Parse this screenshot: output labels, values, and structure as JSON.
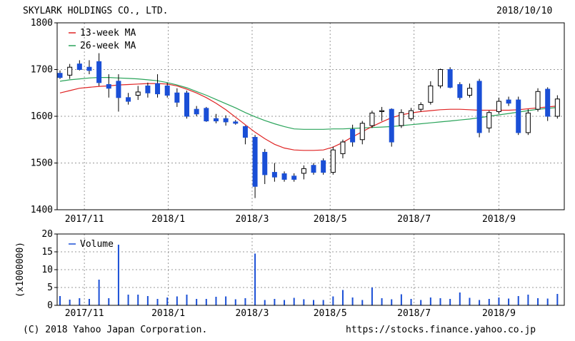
{
  "header": {
    "company": "SKYLARK HOLDINGS CO., LTD.",
    "date": "2018/10/10"
  },
  "footer": {
    "copyright": "(C) 2018 Yahoo Japan Corporation.",
    "url": "https://stocks.finance.yahoo.co.jp"
  },
  "colors": {
    "up": "#ffffff",
    "down": "#1a4fd6",
    "ma13": "#e02424",
    "ma26": "#2aa45a",
    "volume": "#1a4fd6",
    "grid": "#999999"
  },
  "chart_data": [
    {
      "type": "candlestick",
      "title": "SKYLARK HOLDINGS CO., LTD.",
      "ylim": [
        1400,
        1800
      ],
      "yticks": [
        1400,
        1500,
        1600,
        1700,
        1800
      ],
      "xticks": [
        "2017/11",
        "2018/1",
        "2018/3",
        "2018/5",
        "2018/7",
        "2018/9"
      ],
      "xtick_pos": [
        2.5,
        11.1,
        19.7,
        27.7,
        36.3,
        45.0
      ],
      "grid": true,
      "legend": [
        "13-week MA",
        "26-week MA"
      ],
      "legend_position": "top-left",
      "n": 52,
      "candles": [
        [
          1692,
          1698,
          1680,
          1683
        ],
        [
          1688,
          1712,
          1680,
          1705
        ],
        [
          1712,
          1720,
          1698,
          1700
        ],
        [
          1705,
          1720,
          1690,
          1698
        ],
        [
          1717,
          1735,
          1665,
          1672
        ],
        [
          1668,
          1690,
          1640,
          1660
        ],
        [
          1675,
          1690,
          1610,
          1640
        ],
        [
          1640,
          1650,
          1625,
          1632
        ],
        [
          1645,
          1665,
          1635,
          1652
        ],
        [
          1665,
          1672,
          1640,
          1650
        ],
        [
          1670,
          1690,
          1640,
          1648
        ],
        [
          1665,
          1672,
          1640,
          1645
        ],
        [
          1650,
          1660,
          1620,
          1630
        ],
        [
          1650,
          1655,
          1595,
          1600
        ],
        [
          1615,
          1622,
          1600,
          1605
        ],
        [
          1617,
          1620,
          1588,
          1590
        ],
        [
          1595,
          1605,
          1585,
          1590
        ],
        [
          1595,
          1602,
          1580,
          1588
        ],
        [
          1588,
          1592,
          1582,
          1585
        ],
        [
          1578,
          1580,
          1540,
          1555
        ],
        [
          1555,
          1560,
          1425,
          1450
        ],
        [
          1523,
          1530,
          1455,
          1475
        ],
        [
          1480,
          1500,
          1460,
          1470
        ],
        [
          1477,
          1482,
          1460,
          1465
        ],
        [
          1472,
          1478,
          1460,
          1465
        ],
        [
          1478,
          1495,
          1465,
          1488
        ],
        [
          1495,
          1500,
          1475,
          1480
        ],
        [
          1505,
          1510,
          1475,
          1480
        ],
        [
          1480,
          1535,
          1475,
          1528
        ],
        [
          1520,
          1550,
          1510,
          1545
        ],
        [
          1572,
          1582,
          1535,
          1545
        ],
        [
          1550,
          1590,
          1540,
          1585
        ],
        [
          1580,
          1612,
          1575,
          1607
        ],
        [
          1610,
          1620,
          1590,
          1612
        ],
        [
          1615,
          1617,
          1535,
          1545
        ],
        [
          1580,
          1615,
          1575,
          1608
        ],
        [
          1595,
          1618,
          1590,
          1612
        ],
        [
          1615,
          1630,
          1610,
          1625
        ],
        [
          1630,
          1675,
          1625,
          1665
        ],
        [
          1665,
          1702,
          1660,
          1700
        ],
        [
          1700,
          1705,
          1660,
          1662
        ],
        [
          1668,
          1673,
          1635,
          1640
        ],
        [
          1645,
          1670,
          1640,
          1660
        ],
        [
          1675,
          1680,
          1555,
          1565
        ],
        [
          1575,
          1612,
          1565,
          1608
        ],
        [
          1610,
          1640,
          1605,
          1632
        ],
        [
          1635,
          1642,
          1622,
          1628
        ],
        [
          1635,
          1642,
          1560,
          1565
        ],
        [
          1565,
          1615,
          1560,
          1607
        ],
        [
          1615,
          1660,
          1610,
          1653
        ],
        [
          1658,
          1662,
          1590,
          1600
        ],
        [
          1600,
          1645,
          1595,
          1637
        ]
      ],
      "ma13": [
        1650,
        1655,
        1660,
        1662,
        1664,
        1665,
        1667,
        1668,
        1669,
        1670,
        1670,
        1669,
        1665,
        1658,
        1650,
        1640,
        1628,
        1614,
        1598,
        1582,
        1566,
        1552,
        1540,
        1532,
        1528,
        1527,
        1527,
        1528,
        1534,
        1544,
        1556,
        1567,
        1578,
        1588,
        1597,
        1603,
        1607,
        1610,
        1612,
        1614,
        1615,
        1615,
        1614,
        1613,
        1613,
        1613,
        1613,
        1614,
        1616,
        1618,
        1620,
        1622
      ],
      "ma26": [
        1675,
        1678,
        1680,
        1682,
        1683,
        1683,
        1682,
        1681,
        1680,
        1678,
        1676,
        1672,
        1667,
        1661,
        1653,
        1645,
        1636,
        1627,
        1618,
        1608,
        1599,
        1591,
        1584,
        1578,
        1573,
        1572,
        1572,
        1572,
        1573,
        1573,
        1574,
        1575,
        1576,
        1577,
        1578,
        1580,
        1582,
        1584,
        1586,
        1588,
        1590,
        1592,
        1594,
        1597,
        1600,
        1603,
        1606,
        1609,
        1612,
        1615,
        1617,
        1619
      ]
    },
    {
      "type": "bar",
      "legend": [
        "Volume"
      ],
      "ylabel": "(x1000000)",
      "ylim": [
        0,
        20
      ],
      "yticks": [
        0,
        5,
        10,
        15,
        20
      ],
      "xticks": [
        "2017/11",
        "2018/1",
        "2018/3",
        "2018/5",
        "2018/7",
        "2018/9"
      ],
      "values": [
        2.6,
        1.6,
        2.0,
        1.8,
        7.2,
        2.0,
        17.0,
        3.0,
        3.0,
        2.6,
        1.8,
        2.2,
        2.5,
        3.0,
        1.8,
        1.8,
        2.4,
        2.5,
        1.7,
        2.0,
        14.5,
        1.5,
        1.8,
        1.5,
        2.1,
        1.7,
        1.5,
        1.5,
        2.5,
        4.3,
        2.2,
        1.5,
        5.0,
        2.0,
        1.7,
        3.1,
        1.8,
        1.5,
        2.2,
        2.0,
        1.8,
        3.6,
        2.1,
        1.5,
        1.8,
        2.2,
        1.9,
        2.6,
        3.0,
        2.0,
        1.9,
        3.2
      ]
    }
  ]
}
